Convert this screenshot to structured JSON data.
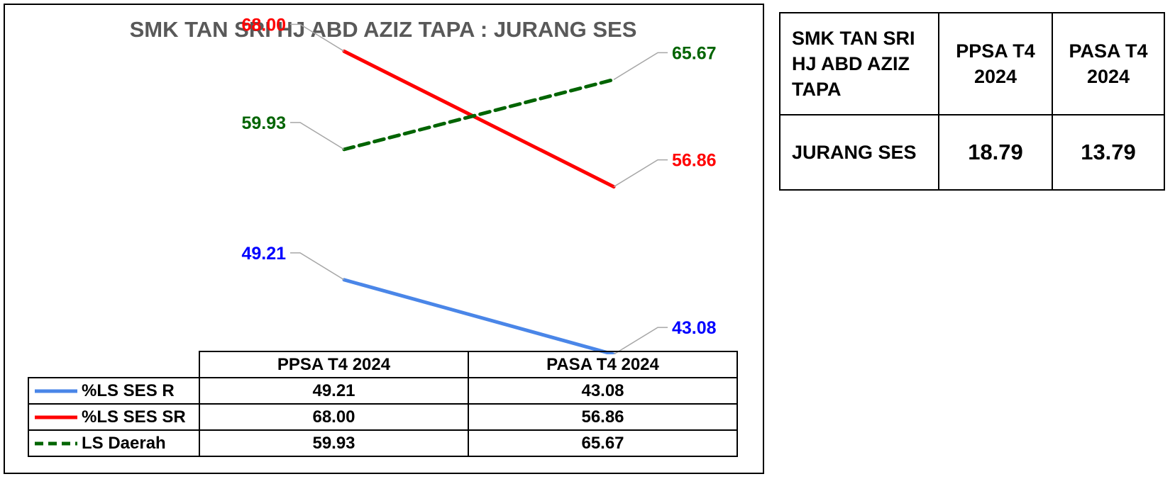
{
  "chart_data": {
    "type": "line",
    "title": "SMK TAN SRI HJ ABD AZIZ TAPA : JURANG SES",
    "categories": [
      "PPSA T4 2024",
      "PASA T4 2024"
    ],
    "ylim": [
      40,
      70
    ],
    "grid": false,
    "legend": "data-table-below",
    "series": [
      {
        "name": "%LS SES R",
        "values": [
          49.21,
          43.08
        ],
        "labels": [
          "49.21",
          "43.08"
        ],
        "color": "#4a86e8",
        "label_color": "#0000ff",
        "dashed": false
      },
      {
        "name": "%LS SES SR",
        "values": [
          68.0,
          56.86
        ],
        "labels": [
          "68.00",
          "56.86"
        ],
        "color": "#ff0000",
        "label_color": "#ff0000",
        "dashed": false
      },
      {
        "name": "LS Daerah",
        "values": [
          59.93,
          65.67
        ],
        "labels": [
          "59.93",
          "65.67"
        ],
        "color": "#006400",
        "label_color": "#006400",
        "dashed": true
      }
    ]
  },
  "summary_table": {
    "header": [
      "SMK TAN SRI HJ ABD AZIZ TAPA",
      "PPSA T4 2024",
      "PASA T4 2024"
    ],
    "row_label": "JURANG SES",
    "values": [
      "18.79",
      "13.79"
    ]
  }
}
